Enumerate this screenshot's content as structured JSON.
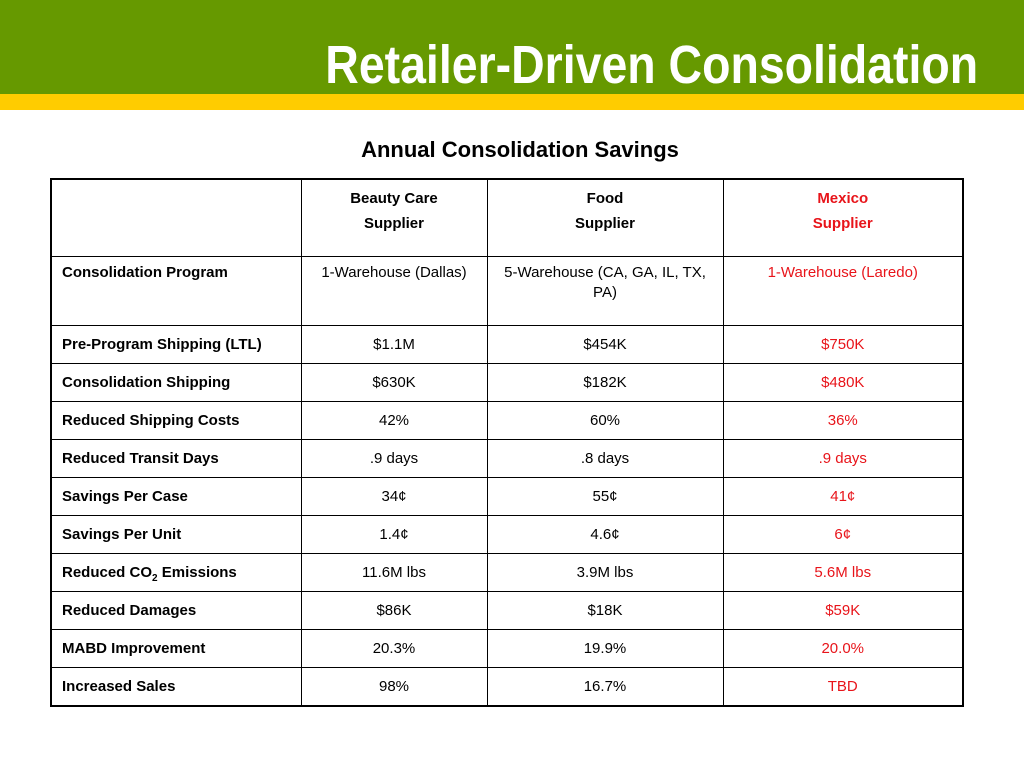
{
  "slide": {
    "title": "Retailer-Driven Consolidation",
    "subtitle": "Annual Consolidation Savings"
  },
  "colors": {
    "header_green": "#669900",
    "header_yellow": "#ffcc00",
    "highlight_red": "#e8141a"
  },
  "table": {
    "columns": [
      {
        "line1": "",
        "line2": ""
      },
      {
        "line1": "Beauty Care",
        "line2": "Supplier"
      },
      {
        "line1": "Food",
        "line2": "Supplier"
      },
      {
        "line1": "Mexico",
        "line2": "Supplier"
      }
    ],
    "rows": [
      {
        "label": "Consolidation Program",
        "beauty": "1-Warehouse (Dallas)",
        "food": "5-Warehouse (CA, GA, IL, TX, PA)",
        "mexico": "1-Warehouse (Laredo)"
      },
      {
        "label": "Pre-Program Shipping (LTL)",
        "beauty": "$1.1M",
        "food": "$454K",
        "mexico": "$750K"
      },
      {
        "label": "Consolidation Shipping",
        "beauty": "$630K",
        "food": "$182K",
        "mexico": "$480K"
      },
      {
        "label": "Reduced Shipping Costs",
        "beauty": "42%",
        "food": "60%",
        "mexico": "36%"
      },
      {
        "label": "Reduced Transit Days",
        "beauty": ".9 days",
        "food": ".8 days",
        "mexico": ".9 days"
      },
      {
        "label": "Savings Per Case",
        "beauty": "34¢",
        "food": "55¢",
        "mexico": "41¢"
      },
      {
        "label": "Savings Per Unit",
        "beauty": "1.4¢",
        "food": "4.6¢",
        "mexico": "6¢"
      },
      {
        "label_prefix": "Reduced CO",
        "label_sub": "2",
        "label_suffix": " Emissions",
        "beauty": "11.6M lbs",
        "food": "3.9M lbs",
        "mexico": "5.6M lbs"
      },
      {
        "label": "Reduced Damages",
        "beauty": "$86K",
        "food": "$18K",
        "mexico": "$59K"
      },
      {
        "label": "MABD Improvement",
        "beauty": "20.3%",
        "food": "19.9%",
        "mexico": "20.0%"
      },
      {
        "label": "Increased Sales",
        "beauty": "98%",
        "food": "16.7%",
        "mexico": "TBD"
      }
    ]
  }
}
